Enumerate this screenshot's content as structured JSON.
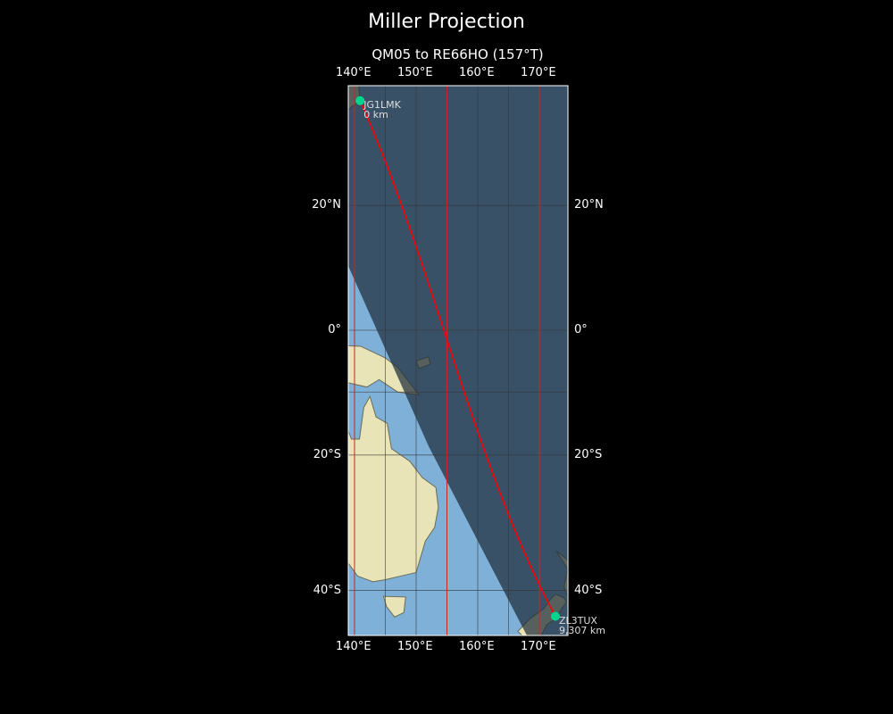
{
  "title": "Miller Projection",
  "subtitle": "QM05 to RE66HO (157°T)",
  "lon_ticks": [
    "140°E",
    "150°E",
    "160°E",
    "170°E"
  ],
  "lon_values": [
    140,
    150,
    160,
    170
  ],
  "lat_ticks": [
    "20°N",
    "0°",
    "20°S",
    "40°S"
  ],
  "lat_values": [
    20,
    0,
    -20,
    -40
  ],
  "extent": {
    "lon": [
      138.9,
      174.6
    ],
    "lat": [
      -46.5,
      38.0
    ]
  },
  "start": {
    "call": "JG1LMK",
    "dist": "0 km",
    "lon": 140.9,
    "lat": 35.7
  },
  "end": {
    "call": "ZL3TUX",
    "dist": "9,307 km",
    "lon": 172.6,
    "lat": -43.5
  },
  "colors": {
    "path": "#ff0000",
    "marker": "#00d68f",
    "meridian": "#cc2222",
    "ocean": "#7fb0d8",
    "land": "#e8e4b8",
    "night": "#1e2c3a"
  }
}
